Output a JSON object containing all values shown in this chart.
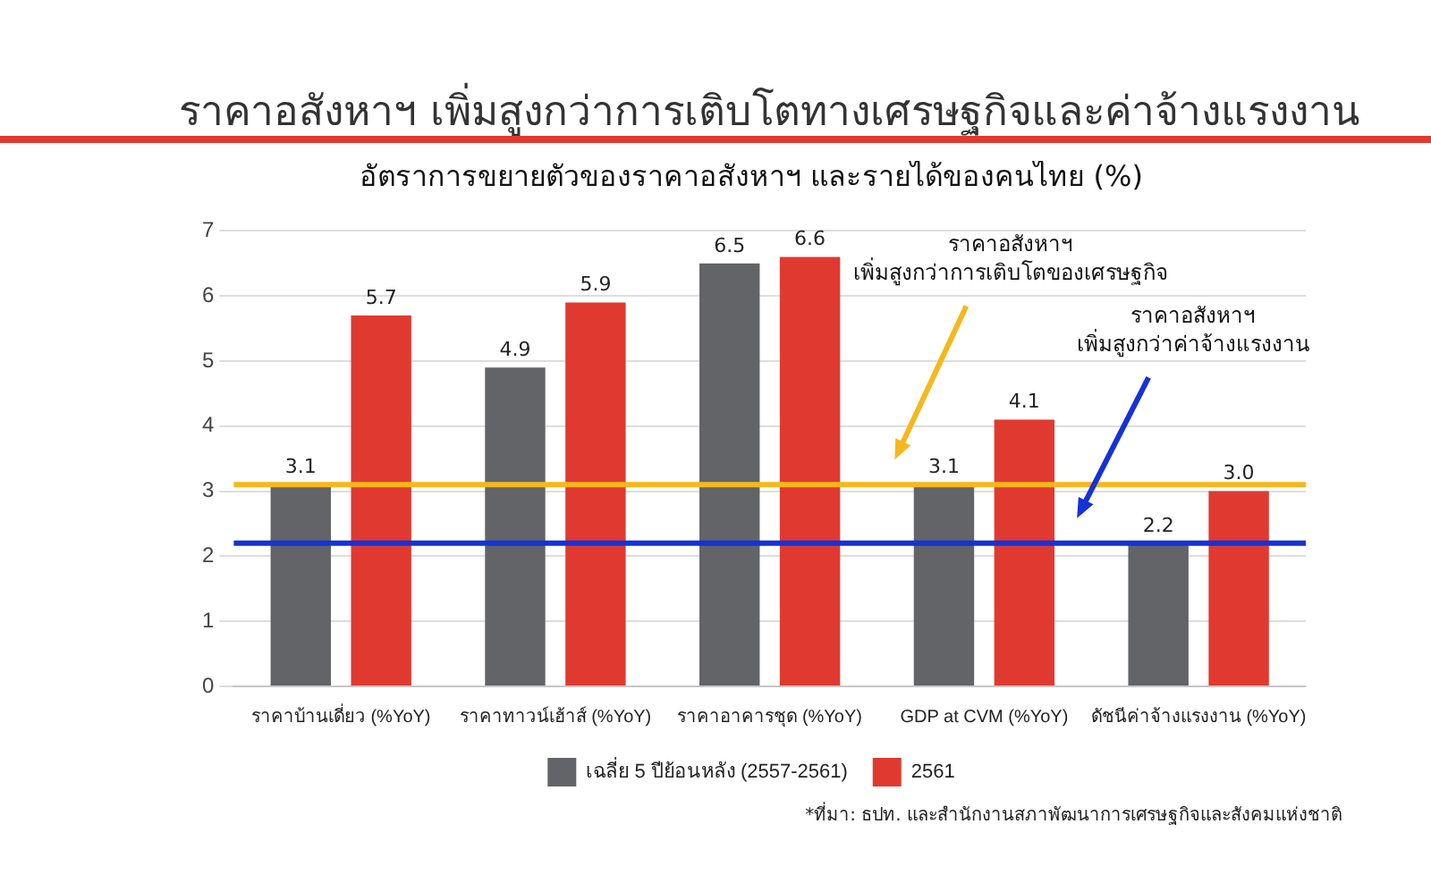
{
  "chart_data": {
    "type": "bar",
    "title": "ราคาอสังหาฯ เพิ่มสูงกว่าการเติบโตทางเศรษฐกิจและค่าจ้างแรงงาน",
    "subtitle": "อัตราการขยายตัวของราคาอสังหาฯ และรายได้ของคนไทย (%)",
    "categories": [
      "ราคาบ้านเดี่ยว (%YoY)",
      "ราคาทาวน์เฮ้าส์ (%YoY)",
      "ราคาอาคารชุด (%YoY)",
      "GDP at CVM (%YoY)",
      "ดัชนีค่าจ้างแรงงาน (%YoY)"
    ],
    "series": [
      {
        "name": "เฉลี่ย 5 ปีย้อนหลัง (2557-2561)",
        "color": "#636467",
        "values": [
          3.1,
          4.9,
          6.5,
          3.1,
          2.2
        ],
        "value_labels": [
          "3.1",
          "4.9",
          "6.5",
          "3.1",
          "2.2"
        ]
      },
      {
        "name": "2561",
        "color": "#e03a30",
        "values": [
          5.7,
          5.9,
          6.6,
          4.1,
          3.0
        ],
        "value_labels": [
          "5.7",
          "5.9",
          "6.6",
          "4.1",
          "3.0"
        ]
      }
    ],
    "ylim": [
      0,
      7
    ],
    "yticks": [
      0,
      1,
      2,
      3,
      4,
      5,
      6,
      7
    ],
    "grid": "y",
    "legend": "bottom",
    "ref_lines": [
      {
        "axis": "y",
        "value": 3.1,
        "color": "#f5b81c"
      },
      {
        "axis": "y",
        "value": 2.2,
        "color": "#1432d6"
      }
    ],
    "annotations": [
      "ราคาอสังหาฯ\nเพิ่มสูงกว่าการเติบโตของเศรษฐกิจ",
      "ราคาอสังหาฯ\nเพิ่มสูงกว่าค่าจ้างแรงงาน",
      "*ที่มา: ธปท. และสำนักงานสภาพัฒนาการเศรษฐกิจและสังคมแห่งชาติ"
    ]
  }
}
